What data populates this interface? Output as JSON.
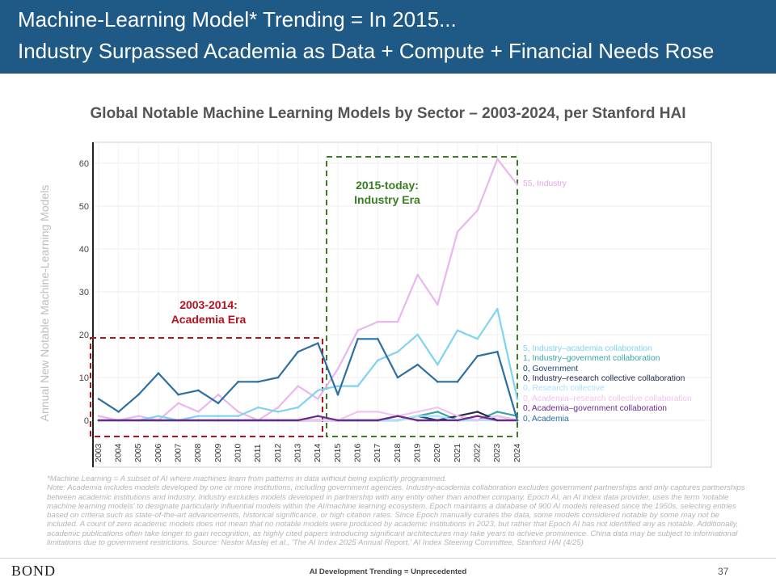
{
  "header": {
    "title_line1": "Machine-Learning Model* Trending = In 2015...",
    "title_line2": "Industry Surpassed Academia as Data + Compute + Financial Needs Rose"
  },
  "chart_title": "Global Notable Machine Learning Models by Sector – 2003-2024, per Stanford HAI",
  "chart_data": {
    "type": "line",
    "x": [
      2003,
      2004,
      2005,
      2006,
      2007,
      2008,
      2009,
      2010,
      2011,
      2012,
      2013,
      2014,
      2015,
      2016,
      2017,
      2018,
      2019,
      2020,
      2021,
      2022,
      2023,
      2024
    ],
    "ylabel": "Annual New Notable Machine-Learning Models",
    "xlabel": "",
    "ylim": [
      -4,
      66
    ],
    "yticks": [
      0,
      10,
      20,
      30,
      40,
      50,
      60
    ],
    "grid": true,
    "series": [
      {
        "name": "Industry",
        "end_label": "55, Industry",
        "color": "#eab6ef",
        "values": [
          1,
          0,
          1,
          0,
          4,
          2,
          6,
          2,
          0,
          3,
          8,
          5,
          12,
          21,
          23,
          23,
          34,
          27,
          44,
          49,
          61,
          55
        ]
      },
      {
        "name": "Industry–academia collaboration",
        "end_label": "5, Industry–academia collaboration",
        "color": "#7fd3f1",
        "values": [
          0,
          0,
          0,
          1,
          0,
          1,
          1,
          1,
          3,
          2,
          3,
          7,
          8,
          8,
          14,
          16,
          20,
          13,
          21,
          19,
          26,
          5
        ]
      },
      {
        "name": "Industry–government collaboration",
        "end_label": "1, Industry–government collaboration",
        "color": "#3aa5a2",
        "values": [
          0,
          0,
          0,
          0,
          0,
          0,
          0,
          0,
          0,
          0,
          0,
          0,
          0,
          0,
          0,
          0,
          1,
          2,
          0,
          0,
          2,
          1
        ]
      },
      {
        "name": "Government",
        "end_label": "0, Government",
        "color": "#1e4772",
        "values": [
          0,
          0,
          0,
          0,
          0,
          0,
          0,
          0,
          0,
          0,
          0,
          0,
          0,
          0,
          0,
          0,
          1,
          0,
          1,
          0,
          1,
          0
        ]
      },
      {
        "name": "Industry–research collective collaboration",
        "end_label": "0, Industry–research collective collaboration",
        "color": "#262b4b",
        "values": [
          0,
          0,
          0,
          0,
          0,
          0,
          0,
          0,
          0,
          0,
          0,
          0,
          0,
          0,
          0,
          1,
          0,
          0,
          1,
          2,
          0,
          0
        ]
      },
      {
        "name": "Research collective",
        "end_label": "0, Research collective",
        "color": "#a8e4f6",
        "values": [
          0,
          0,
          0,
          0,
          0,
          0,
          0,
          0,
          0,
          0,
          0,
          0,
          0,
          0,
          0,
          0,
          1,
          1,
          0,
          0,
          0,
          0
        ]
      },
      {
        "name": "Academia–research collective collaboration",
        "end_label": "0, Academia–research collective collaboration",
        "color": "#f3c3f0",
        "values": [
          0,
          0,
          0,
          0,
          0,
          0,
          0,
          0,
          0,
          0,
          0,
          0,
          0,
          2,
          2,
          1,
          2,
          3,
          1,
          0,
          1,
          0
        ]
      },
      {
        "name": "Academia–government collaboration",
        "end_label": "0, Academia–government collaboration",
        "color": "#6a2a88",
        "values": [
          0,
          0,
          0,
          0,
          0,
          0,
          0,
          0,
          0,
          0,
          0,
          1,
          0,
          0,
          0,
          1,
          0,
          0,
          0,
          1,
          0,
          0
        ]
      },
      {
        "name": "Academia",
        "end_label": "0, Academia",
        "color": "#2d6ea3",
        "values": [
          5,
          2,
          6,
          11,
          6,
          7,
          4,
          9,
          9,
          10,
          16,
          18,
          6,
          19,
          19,
          10,
          13,
          9,
          9,
          15,
          16,
          0
        ]
      }
    ],
    "annotations": [
      {
        "text_line1": "2003-2014:",
        "text_line2": "Academia Era",
        "color": "#b5121b",
        "x_range": [
          2003,
          2014
        ]
      },
      {
        "text_line1": "2015-today:",
        "text_line2": "Industry Era",
        "color": "#3a7d22",
        "x_range": [
          2015,
          2024
        ]
      }
    ]
  },
  "footnote": {
    "line1": "*Machine Learning = A subset of AI where machines learn from patterns in data without being explicitly programmed.",
    "line2": "Note: Academia includes models developed by one or more institutions, including government agencies. Industry-academia collaboration excludes government partnerships and only captures partnerships between academic institutions and industry. Industry excludes models developed in partnership with any entity other than another company. Epoch AI, an AI index data provider, uses the term 'notable machine learning models' to designate particularly influential models within the AI/machine learning ecosystem. Epoch maintains a database of 900 AI models released since the 1950s, selecting entries based on criteria such as state-of-the-art advancements, historical significance, or high citation rates. Since Epoch manually curates the data, some models considered notable by some may not be included. A count of zero academic models does not mean that no notable models were produced by academic institutions in 2023, but rather that Epoch AI has not identified any as notable. Additionally, academic publications often take longer to gain recognition, as highly cited papers introducing significant architectures may take years to achieve prominence. China data may be subject to informational limitations due to government restrictions. Source: Nestor Maslej et al., 'The AI Index 2025 Annual Report,' AI Index Steering Committee, Stanford HAI (4/25)"
  },
  "footer": {
    "logo": "BOND",
    "center_text": "AI Development Trending = Unprecedented",
    "page_number": "37"
  }
}
